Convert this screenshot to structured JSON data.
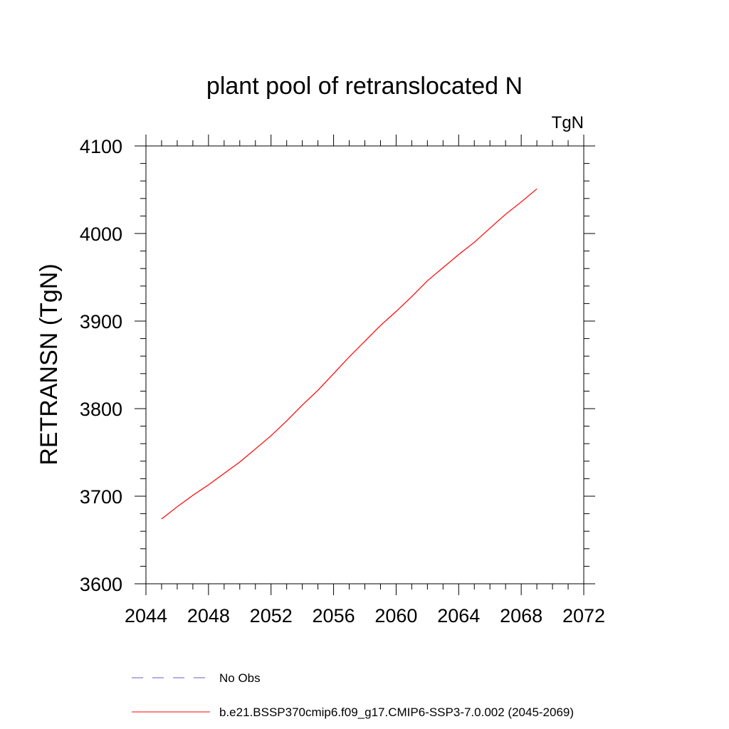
{
  "chart_data": {
    "type": "line",
    "title": "plant pool of retranslocated N",
    "units": "TgN",
    "xlabel": "",
    "ylabel": "RETRANSN  (TgN)",
    "xlim": [
      2044,
      2072
    ],
    "ylim": [
      3600,
      4100
    ],
    "xticks": [
      2044,
      2048,
      2052,
      2056,
      2060,
      2064,
      2068,
      2072
    ],
    "yticks": [
      3600,
      3700,
      3800,
      3900,
      4000,
      4100
    ],
    "series": [
      {
        "name": "b.e21.BSSP370cmip6.f09_g17.CMIP6-SSP3-7.0.002 (2045-2069)",
        "color": "#ff0000",
        "dash": "solid",
        "x": [
          2045,
          2046,
          2047,
          2048,
          2049,
          2050,
          2051,
          2052,
          2053,
          2054,
          2055,
          2056,
          2057,
          2058,
          2059,
          2060,
          2061,
          2062,
          2063,
          2064,
          2065,
          2066,
          2067,
          2068,
          2069
        ],
        "y": [
          3674,
          3688,
          3701,
          3713,
          3726,
          3739,
          3754,
          3769,
          3786,
          3804,
          3821,
          3840,
          3859,
          3877,
          3895,
          3911,
          3928,
          3946,
          3961,
          3976,
          3990,
          4006,
          4022,
          4036,
          4051
        ]
      }
    ],
    "legend": [
      {
        "label": "No Obs",
        "color": "#6a5acd",
        "dash": "dashed"
      },
      {
        "label": "b.e21.BSSP370cmip6.f09_g17.CMIP6-SSP3-7.0.002 (2045-2069)",
        "color": "#ff0000",
        "dash": "solid"
      }
    ],
    "legend_position": "bottom"
  }
}
